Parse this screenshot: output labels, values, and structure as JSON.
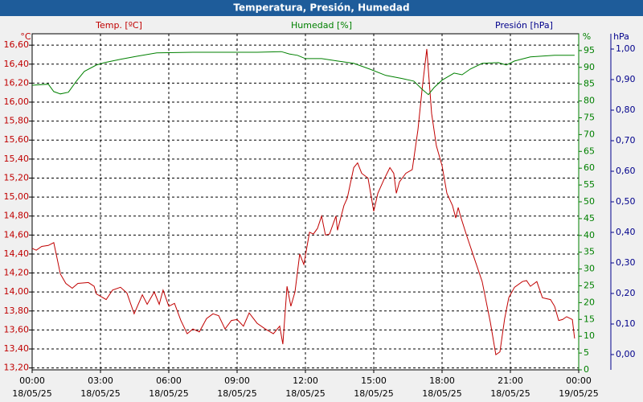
{
  "chart_data": {
    "type": "line",
    "title": "Temperatura, Presión, Humedad",
    "grid": true,
    "xlim": [
      0,
      24
    ],
    "xticks": [
      {
        "value": 0,
        "label": "00:00"
      },
      {
        "value": 3,
        "label": "03:00"
      },
      {
        "value": 6,
        "label": "06:00"
      },
      {
        "value": 9,
        "label": "09:00"
      },
      {
        "value": 12,
        "label": "12:00"
      },
      {
        "value": 15,
        "label": "15:00"
      },
      {
        "value": 18,
        "label": "18:00"
      },
      {
        "value": 21,
        "label": "21:00"
      },
      {
        "value": 24,
        "label": "00:00"
      }
    ],
    "xtick_dates": [
      "18/05/25",
      "18/05/25",
      "18/05/25",
      "18/05/25",
      "18/05/25",
      "18/05/25",
      "18/05/25",
      "18/05/25",
      "19/05/25"
    ],
    "y_unit": "°C",
    "ylim": [
      13.18,
      16.72
    ],
    "yticks": [
      {
        "value": 13.2,
        "label": "13,20"
      },
      {
        "value": 13.4,
        "label": "13,40"
      },
      {
        "value": 13.6,
        "label": "13,60"
      },
      {
        "value": 13.8,
        "label": "13,80"
      },
      {
        "value": 14.0,
        "label": "14,00"
      },
      {
        "value": 14.2,
        "label": "14,20"
      },
      {
        "value": 14.4,
        "label": "14,40"
      },
      {
        "value": 14.6,
        "label": "14,60"
      },
      {
        "value": 14.8,
        "label": "14,80"
      },
      {
        "value": 15.0,
        "label": "15,00"
      },
      {
        "value": 15.2,
        "label": "15,20"
      },
      {
        "value": 15.4,
        "label": "15,40"
      },
      {
        "value": 15.6,
        "label": "15,60"
      },
      {
        "value": 15.8,
        "label": "15,80"
      },
      {
        "value": 16.0,
        "label": "16,00"
      },
      {
        "value": 16.2,
        "label": "16,20"
      },
      {
        "value": 16.4,
        "label": "16,40"
      },
      {
        "value": 16.6,
        "label": "16,60"
      }
    ],
    "y2_unit": "%",
    "y2lim": [
      0,
      100
    ],
    "y2ticks": [
      0,
      5,
      10,
      15,
      20,
      25,
      30,
      35,
      40,
      45,
      50,
      55,
      60,
      65,
      70,
      75,
      80,
      85,
      90,
      95
    ],
    "y3_label": "Presión [hPa]",
    "y3_unit": "hPa",
    "y3_color": "#00008b",
    "y3lim": [
      -0.05,
      1.05
    ],
    "y3ticks": [
      {
        "value": 0,
        "label": "0,00"
      },
      {
        "value": 0.1,
        "label": "0,10"
      },
      {
        "value": 0.2,
        "label": "0,20"
      },
      {
        "value": 0.3,
        "label": "0,30"
      },
      {
        "value": 0.4,
        "label": "0,40"
      },
      {
        "value": 0.5,
        "label": "0,50"
      },
      {
        "value": 0.6,
        "label": "0,60"
      },
      {
        "value": 0.7,
        "label": "0,70"
      },
      {
        "value": 0.8,
        "label": "0,80"
      },
      {
        "value": 0.9,
        "label": "0,90"
      },
      {
        "value": 1.0,
        "label": "1,00"
      }
    ],
    "series": [
      {
        "name": "Temp. [ºC]",
        "color": "#c00000",
        "axis": "y",
        "x": [
          0,
          0.18,
          0.42,
          0.71,
          0.95,
          1.24,
          1.48,
          1.76,
          2.01,
          2.47,
          2.72,
          2.82,
          3.25,
          3.53,
          3.88,
          4.16,
          4.48,
          4.84,
          5.05,
          5.36,
          5.58,
          5.75,
          6.0,
          6.25,
          6.53,
          6.81,
          7.06,
          7.34,
          7.66,
          7.94,
          8.19,
          8.47,
          8.75,
          9.0,
          9.28,
          9.53,
          9.88,
          10.24,
          10.59,
          10.87,
          11.01,
          11.19,
          11.36,
          11.54,
          11.75,
          11.93,
          12.18,
          12.35,
          12.53,
          12.71,
          12.88,
          13.06,
          13.34,
          13.41,
          13.69,
          13.84,
          14.12,
          14.29,
          14.47,
          14.75,
          15.0,
          15.18,
          15.46,
          15.71,
          15.88,
          15.99,
          16.13,
          16.41,
          16.69,
          16.94,
          17.12,
          17.33,
          17.54,
          17.75,
          18.0,
          18.21,
          18.46,
          18.6,
          18.71,
          18.81,
          19.06,
          19.41,
          19.76,
          20.12,
          20.36,
          20.54,
          20.75,
          20.93,
          21.18,
          21.53,
          21.71,
          21.88,
          22.16,
          22.41,
          22.76,
          22.94,
          23.12,
          23.29,
          23.47,
          23.72,
          23.82
        ],
        "values": [
          14.46,
          14.44,
          14.48,
          14.49,
          14.52,
          14.19,
          14.09,
          14.04,
          14.09,
          14.1,
          14.06,
          13.98,
          13.92,
          14.02,
          14.05,
          13.99,
          13.77,
          13.97,
          13.87,
          14.0,
          13.87,
          14.02,
          13.85,
          13.88,
          13.7,
          13.56,
          13.61,
          13.58,
          13.72,
          13.77,
          13.75,
          13.61,
          13.7,
          13.71,
          13.64,
          13.78,
          13.67,
          13.61,
          13.56,
          13.64,
          13.45,
          14.06,
          13.85,
          14.0,
          14.4,
          14.29,
          14.63,
          14.61,
          14.67,
          14.8,
          14.6,
          14.61,
          14.8,
          14.65,
          14.91,
          14.99,
          15.31,
          15.36,
          15.25,
          15.2,
          14.85,
          15.04,
          15.19,
          15.31,
          15.25,
          15.04,
          15.16,
          15.25,
          15.29,
          15.71,
          16.13,
          16.56,
          15.88,
          15.54,
          15.33,
          15.04,
          14.91,
          14.78,
          14.89,
          14.8,
          14.61,
          14.36,
          14.11,
          13.68,
          13.34,
          13.37,
          13.72,
          13.94,
          14.05,
          14.11,
          14.12,
          14.06,
          14.11,
          13.94,
          13.92,
          13.85,
          13.7,
          13.71,
          13.74,
          13.71,
          13.51
        ]
      },
      {
        "name": "Humedad [%]",
        "color": "#008000",
        "axis": "y2",
        "x": [
          0,
          0.71,
          0.95,
          1.24,
          1.59,
          1.94,
          2.29,
          2.82,
          3.18,
          3.88,
          4.59,
          5.47,
          7.06,
          8.47,
          9.88,
          10.94,
          11.29,
          11.65,
          12.0,
          12.71,
          13.41,
          14.12,
          14.82,
          15.53,
          16.24,
          16.76,
          17.12,
          17.4,
          17.65,
          18.0,
          18.53,
          18.88,
          19.24,
          19.76,
          20.47,
          20.82,
          21.18,
          21.88,
          22.94,
          23.82
        ],
        "values": [
          84.7,
          85.0,
          82.8,
          82.1,
          82.6,
          85.9,
          88.8,
          90.7,
          91.4,
          92.4,
          93.3,
          94.3,
          94.5,
          94.5,
          94.5,
          94.7,
          94.0,
          93.6,
          92.6,
          92.6,
          91.9,
          91.2,
          89.5,
          87.6,
          86.7,
          85.9,
          83.5,
          81.9,
          84.0,
          86.2,
          88.3,
          87.8,
          89.5,
          91.2,
          91.4,
          90.7,
          91.9,
          93.1,
          93.6,
          93.6
        ]
      }
    ]
  }
}
